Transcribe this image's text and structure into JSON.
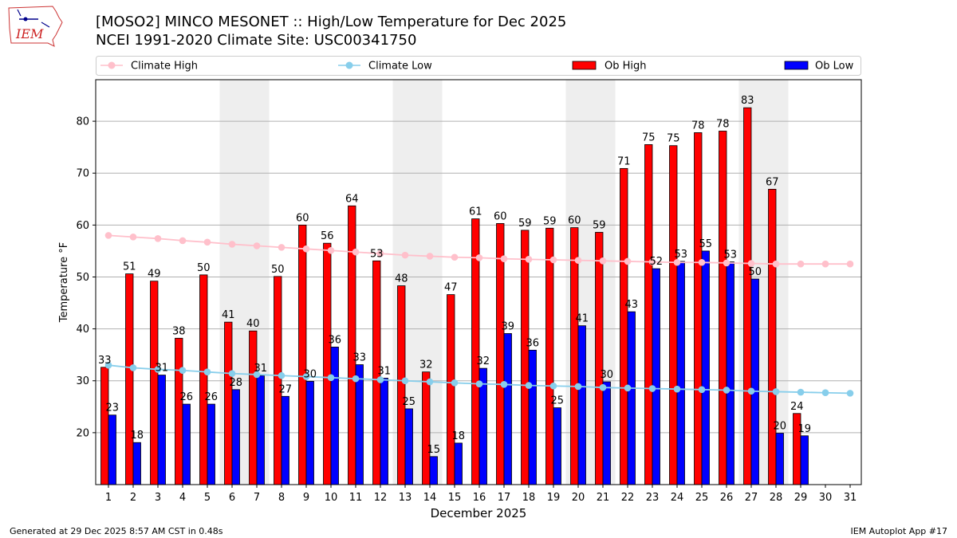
{
  "header": {
    "title": "[MOSO2] MINCO MESONET :: High/Low Temperature for Dec 2025",
    "subtitle": "NCEI 1991-2020 Climate Site: USC00341750",
    "logo_text": "IEM"
  },
  "footer": {
    "left": "Generated at 29 Dec 2025 8:57 AM CST in 0.48s",
    "right": "IEM Autoplot App #17"
  },
  "chart_data": {
    "type": "bar",
    "xlabel": "December 2025",
    "ylabel": "Temperature °F",
    "ylim": [
      10,
      88
    ],
    "yticks": [
      20,
      30,
      40,
      50,
      60,
      70,
      80
    ],
    "grid": "horizontal",
    "legend_position": "top",
    "categories": [
      "1",
      "2",
      "3",
      "4",
      "5",
      "6",
      "7",
      "8",
      "9",
      "10",
      "11",
      "12",
      "13",
      "14",
      "15",
      "16",
      "17",
      "18",
      "19",
      "20",
      "21",
      "22",
      "23",
      "24",
      "25",
      "26",
      "27",
      "28",
      "29",
      "30",
      "31"
    ],
    "weekend_shading": [
      "6",
      "7",
      "13",
      "14",
      "20",
      "21",
      "27",
      "28"
    ],
    "series": [
      {
        "name": "Climate High",
        "kind": "line",
        "color": "#ffc0cb",
        "values": [
          58,
          57.7,
          57.4,
          57,
          56.7,
          56.3,
          56,
          55.7,
          55.4,
          55.1,
          54.8,
          54.5,
          54.2,
          54,
          53.8,
          53.7,
          53.5,
          53.4,
          53.3,
          53.2,
          53.1,
          53,
          52.9,
          52.8,
          52.8,
          52.7,
          52.6,
          52.5,
          52.5,
          52.5,
          52.5
        ]
      },
      {
        "name": "Climate Low",
        "kind": "line",
        "color": "#87ceeb",
        "values": [
          33,
          32.5,
          32.2,
          32,
          31.7,
          31.4,
          31.2,
          31,
          30.8,
          30.6,
          30.4,
          30.2,
          30,
          29.8,
          29.6,
          29.4,
          29.3,
          29.1,
          29,
          28.9,
          28.7,
          28.6,
          28.5,
          28.4,
          28.3,
          28.2,
          28,
          27.9,
          27.8,
          27.7,
          27.6
        ]
      },
      {
        "name": "Ob High",
        "kind": "bar",
        "color": "#ff0000",
        "values": [
          33,
          51,
          49,
          38,
          50,
          41,
          40,
          50,
          60,
          56,
          64,
          53,
          48,
          32,
          47,
          61,
          60,
          59,
          59,
          60,
          59,
          71,
          75,
          75,
          78,
          78,
          83,
          67,
          24,
          null,
          null
        ],
        "plot_values": [
          32.6,
          50.6,
          49.2,
          38.2,
          50.4,
          41.3,
          39.6,
          50.1,
          60,
          56.5,
          63.7,
          53.1,
          48.3,
          31.7,
          46.6,
          61.2,
          60.3,
          59,
          59.4,
          59.5,
          58.6,
          70.9,
          75.5,
          75.3,
          77.8,
          78.1,
          82.6,
          66.9,
          23.7,
          null,
          null
        ]
      },
      {
        "name": "Ob Low",
        "kind": "bar",
        "color": "#0000ff",
        "values": [
          23,
          18,
          31,
          26,
          26,
          28,
          31,
          27,
          30,
          36,
          33,
          31,
          25,
          15,
          18,
          32,
          39,
          36,
          25,
          41,
          30,
          43,
          52,
          53,
          55,
          53,
          50,
          20,
          19,
          null,
          null
        ],
        "plot_values": [
          23.4,
          18.1,
          31.1,
          25.5,
          25.5,
          28.3,
          31,
          27,
          29.9,
          36.5,
          33.1,
          30.5,
          24.6,
          15.4,
          18,
          32.4,
          39.1,
          35.9,
          24.8,
          40.6,
          29.8,
          43.3,
          51.6,
          53,
          55,
          52.9,
          49.6,
          19.9,
          19.4,
          null,
          null
        ]
      }
    ]
  }
}
